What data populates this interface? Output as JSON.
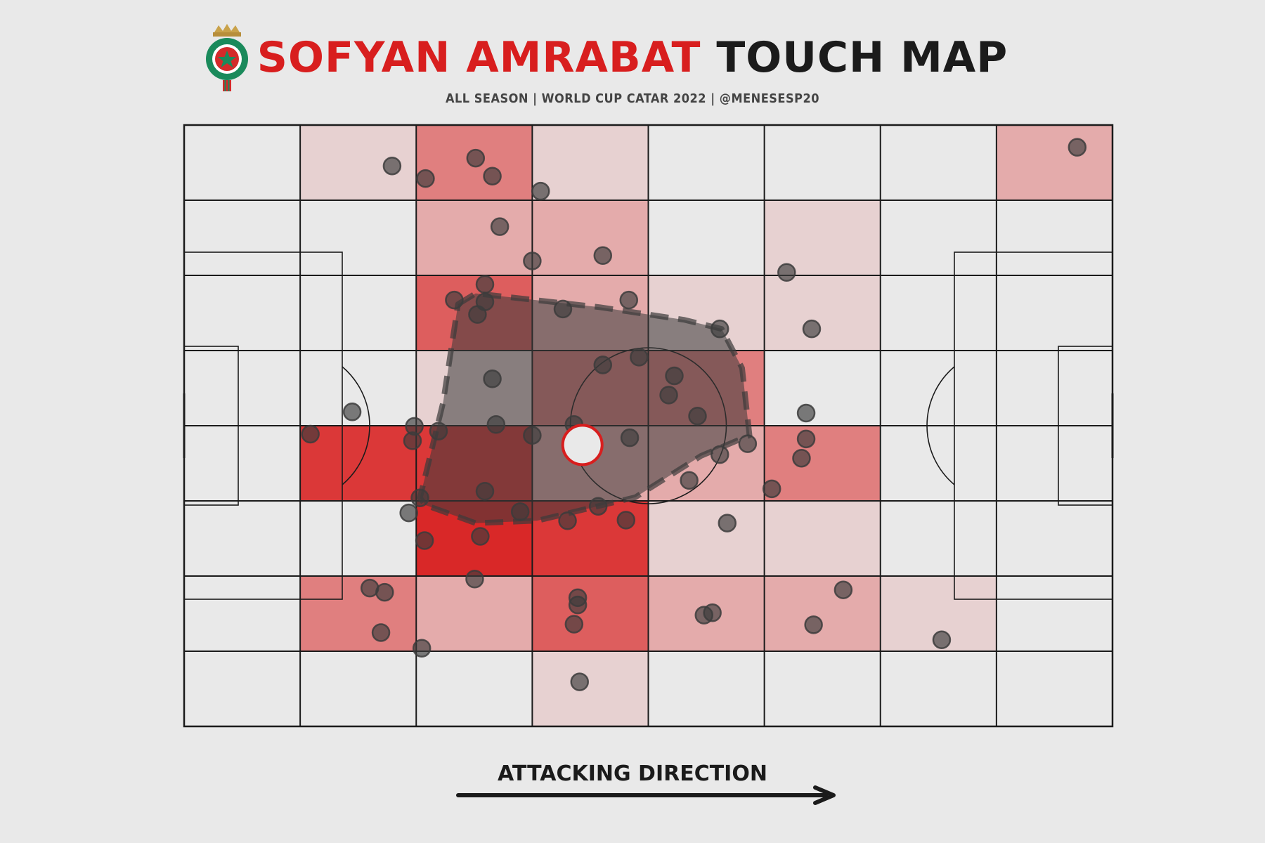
{
  "title": {
    "name": "SOFYAN AMRABAT",
    "rest": "TOUCH MAP"
  },
  "subtitle": "ALL SEASON | WORLD CUP CATAR 2022 | @MENESESP20",
  "direction_label": "ATTACKING DIRECTION",
  "colors": {
    "accent": "#d81e1e",
    "dark": "#1b1b1b",
    "background": "#e9e9e9",
    "point": "#3c3c3c",
    "hull": "#3a3a3a"
  },
  "logo_icon": "morocco-federation-crest-icon",
  "chart_data": {
    "type": "heatmap",
    "x_range": [
      0,
      100
    ],
    "y_range": [
      0,
      100
    ],
    "grid": {
      "cols": 8,
      "rows": 8
    },
    "heat_intensity_rows_top_to_bottom": [
      [
        0.0,
        0.12,
        0.55,
        0.12,
        0.0,
        0.0,
        0.0,
        0.32
      ],
      [
        0.0,
        0.0,
        0.32,
        0.32,
        0.0,
        0.12,
        0.0,
        0.0
      ],
      [
        0.0,
        0.0,
        0.72,
        0.32,
        0.12,
        0.12,
        0.0,
        0.0
      ],
      [
        0.0,
        0.0,
        0.12,
        0.55,
        0.55,
        0.0,
        0.0,
        0.0
      ],
      [
        0.0,
        0.92,
        0.92,
        0.32,
        0.32,
        0.55,
        0.0,
        0.0
      ],
      [
        0.0,
        0.0,
        1.0,
        0.92,
        0.12,
        0.12,
        0.0,
        0.0
      ],
      [
        0.0,
        0.55,
        0.32,
        0.72,
        0.32,
        0.32,
        0.12,
        0.0
      ],
      [
        0.0,
        0.0,
        0.0,
        0.12,
        0.0,
        0.0,
        0.0,
        0.0
      ]
    ],
    "touches": [
      [
        22.4,
        93.2
      ],
      [
        26.0,
        91.1
      ],
      [
        31.4,
        94.5
      ],
      [
        33.2,
        91.5
      ],
      [
        38.4,
        89.0
      ],
      [
        34.0,
        83.1
      ],
      [
        37.5,
        77.4
      ],
      [
        45.1,
        78.3
      ],
      [
        64.9,
        75.5
      ],
      [
        32.4,
        73.5
      ],
      [
        29.1,
        70.9
      ],
      [
        32.4,
        70.6
      ],
      [
        31.6,
        68.5
      ],
      [
        40.8,
        69.4
      ],
      [
        47.9,
        70.9
      ],
      [
        57.7,
        66.1
      ],
      [
        67.6,
        66.1
      ],
      [
        33.2,
        57.8
      ],
      [
        45.1,
        60.1
      ],
      [
        49.0,
        61.4
      ],
      [
        52.8,
        58.3
      ],
      [
        52.2,
        55.1
      ],
      [
        55.3,
        51.6
      ],
      [
        42.0,
        50.2
      ],
      [
        37.5,
        48.4
      ],
      [
        33.6,
        50.2
      ],
      [
        27.4,
        49.1
      ],
      [
        24.6,
        47.5
      ],
      [
        24.8,
        49.9
      ],
      [
        18.1,
        52.3
      ],
      [
        13.6,
        48.6
      ],
      [
        48.0,
        48.0
      ],
      [
        67.0,
        52.1
      ],
      [
        67.0,
        47.8
      ],
      [
        60.7,
        47.0
      ],
      [
        57.7,
        45.2
      ],
      [
        63.3,
        39.5
      ],
      [
        66.5,
        44.6
      ],
      [
        25.4,
        38.0
      ],
      [
        24.2,
        35.5
      ],
      [
        25.9,
        30.9
      ],
      [
        31.9,
        31.6
      ],
      [
        32.4,
        39.1
      ],
      [
        36.2,
        35.7
      ],
      [
        41.3,
        34.2
      ],
      [
        44.6,
        36.6
      ],
      [
        47.6,
        34.3
      ],
      [
        54.4,
        40.9
      ],
      [
        58.5,
        33.8
      ],
      [
        20.0,
        23.0
      ],
      [
        21.6,
        22.3
      ],
      [
        21.2,
        15.6
      ],
      [
        25.6,
        13.0
      ],
      [
        31.3,
        24.5
      ],
      [
        42.4,
        21.4
      ],
      [
        42.4,
        20.2
      ],
      [
        42.0,
        17.0
      ],
      [
        56.0,
        18.5
      ],
      [
        56.9,
        18.9
      ],
      [
        67.8,
        16.9
      ],
      [
        71.0,
        22.7
      ],
      [
        81.6,
        14.4
      ],
      [
        42.6,
        7.4
      ],
      [
        96.2,
        96.3
      ]
    ],
    "average_position": [
      42.9,
      46.8
    ],
    "convex_hull": [
      [
        29.5,
        70.2
      ],
      [
        31.4,
        72.0
      ],
      [
        44.8,
        69.7
      ],
      [
        53.9,
        67.6
      ],
      [
        57.9,
        66.1
      ],
      [
        60.1,
        59.6
      ],
      [
        60.9,
        48.4
      ],
      [
        55.7,
        45.0
      ],
      [
        48.6,
        38.1
      ],
      [
        38.0,
        34.2
      ],
      [
        31.4,
        33.8
      ],
      [
        26.0,
        36.8
      ],
      [
        25.4,
        38.0
      ],
      [
        27.9,
        53.9
      ]
    ]
  }
}
